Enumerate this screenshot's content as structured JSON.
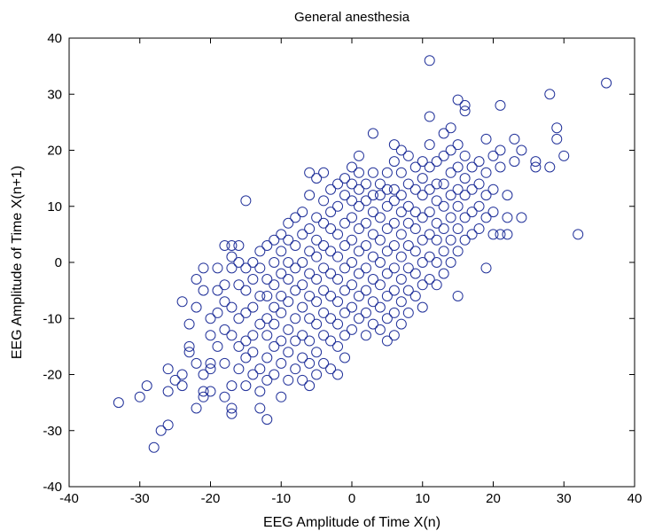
{
  "chart_data": {
    "type": "scatter",
    "title": "General anesthesia",
    "xlabel": "EEG Amplitude of Time X(n)",
    "ylabel": "EEG Amplitude of Time X(n+1)",
    "xlim": [
      -40,
      40
    ],
    "ylim": [
      -40,
      40
    ],
    "xticks": [
      -40,
      -30,
      -20,
      -10,
      0,
      10,
      20,
      30,
      40
    ],
    "yticks": [
      -40,
      -30,
      -20,
      -10,
      0,
      10,
      20,
      30,
      40
    ],
    "grid": false,
    "legend": "none",
    "marker": "circle-open",
    "marker_color": "#22329a",
    "points": [
      [
        -33,
        -25
      ],
      [
        -30,
        -24
      ],
      [
        -29,
        -22
      ],
      [
        -28,
        -33
      ],
      [
        -27,
        -30
      ],
      [
        -26,
        -29
      ],
      [
        -26,
        -23
      ],
      [
        -26,
        -19
      ],
      [
        -25,
        -21
      ],
      [
        -24,
        -20
      ],
      [
        -24,
        -22
      ],
      [
        -24,
        -7
      ],
      [
        -23,
        -11
      ],
      [
        -23,
        -16
      ],
      [
        -23,
        -15
      ],
      [
        -22,
        -26
      ],
      [
        -22,
        -18
      ],
      [
        -22,
        -8
      ],
      [
        -22,
        -3
      ],
      [
        -21,
        -24
      ],
      [
        -21,
        -20
      ],
      [
        -21,
        -23
      ],
      [
        -21,
        -5
      ],
      [
        -21,
        -1
      ],
      [
        -20,
        -23
      ],
      [
        -20,
        -18
      ],
      [
        -20,
        -13
      ],
      [
        -20,
        -10
      ],
      [
        -20,
        -19
      ],
      [
        -19,
        -15
      ],
      [
        -19,
        -9
      ],
      [
        -19,
        -5
      ],
      [
        -19,
        -1
      ],
      [
        -18,
        -24
      ],
      [
        -18,
        -12
      ],
      [
        -18,
        -18
      ],
      [
        -18,
        -4
      ],
      [
        -18,
        -7
      ],
      [
        -18,
        3
      ],
      [
        -17,
        -27
      ],
      [
        -17,
        -26
      ],
      [
        -17,
        -22
      ],
      [
        -17,
        -13
      ],
      [
        -17,
        -8
      ],
      [
        -17,
        -1
      ],
      [
        -17,
        1
      ],
      [
        -17,
        3
      ],
      [
        -16,
        -19
      ],
      [
        -16,
        -10
      ],
      [
        -16,
        -15
      ],
      [
        -16,
        -4
      ],
      [
        -16,
        0
      ],
      [
        -16,
        3
      ],
      [
        -15,
        -22
      ],
      [
        -15,
        -17
      ],
      [
        -15,
        -14
      ],
      [
        -15,
        -9
      ],
      [
        -15,
        -5
      ],
      [
        -15,
        -1
      ],
      [
        -15,
        11
      ],
      [
        -14,
        -20
      ],
      [
        -14,
        -16
      ],
      [
        -14,
        -13
      ],
      [
        -14,
        -8
      ],
      [
        -14,
        -3
      ],
      [
        -14,
        0
      ],
      [
        -13,
        -23
      ],
      [
        -13,
        -26
      ],
      [
        -13,
        -19
      ],
      [
        -13,
        -11
      ],
      [
        -13,
        -6
      ],
      [
        -13,
        -1
      ],
      [
        -13,
        2
      ],
      [
        -12,
        -28
      ],
      [
        -12,
        -21
      ],
      [
        -12,
        -17
      ],
      [
        -12,
        -13
      ],
      [
        -12,
        -10
      ],
      [
        -12,
        -6
      ],
      [
        -12,
        -3
      ],
      [
        -12,
        3
      ],
      [
        -11,
        -20
      ],
      [
        -11,
        -15
      ],
      [
        -11,
        -11
      ],
      [
        -11,
        -8
      ],
      [
        -11,
        -4
      ],
      [
        -11,
        0
      ],
      [
        -11,
        4
      ],
      [
        -10,
        -24
      ],
      [
        -10,
        -18
      ],
      [
        -10,
        -14
      ],
      [
        -10,
        -9
      ],
      [
        -10,
        -6
      ],
      [
        -10,
        -2
      ],
      [
        -10,
        2
      ],
      [
        -10,
        5
      ],
      [
        -9,
        -21
      ],
      [
        -9,
        -16
      ],
      [
        -9,
        -12
      ],
      [
        -9,
        -7
      ],
      [
        -9,
        -3
      ],
      [
        -9,
        0
      ],
      [
        -9,
        4
      ],
      [
        -9,
        7
      ],
      [
        -8,
        -19
      ],
      [
        -8,
        -14
      ],
      [
        -8,
        -10
      ],
      [
        -8,
        -5
      ],
      [
        -8,
        -1
      ],
      [
        -8,
        3
      ],
      [
        -8,
        8
      ],
      [
        -7,
        -21
      ],
      [
        -7,
        -17
      ],
      [
        -7,
        -13
      ],
      [
        -7,
        -8
      ],
      [
        -7,
        -4
      ],
      [
        -7,
        0
      ],
      [
        -7,
        5
      ],
      [
        -7,
        9
      ],
      [
        -6,
        -22
      ],
      [
        -6,
        -18
      ],
      [
        -6,
        -14
      ],
      [
        -6,
        -10
      ],
      [
        -6,
        -6
      ],
      [
        -6,
        -2
      ],
      [
        -6,
        2
      ],
      [
        -6,
        6
      ],
      [
        -6,
        12
      ],
      [
        -6,
        16
      ],
      [
        -5,
        -20
      ],
      [
        -5,
        -16
      ],
      [
        -5,
        -11
      ],
      [
        -5,
        -7
      ],
      [
        -5,
        -3
      ],
      [
        -5,
        1
      ],
      [
        -5,
        4
      ],
      [
        -5,
        8
      ],
      [
        -5,
        15
      ],
      [
        -4,
        -18
      ],
      [
        -4,
        -13
      ],
      [
        -4,
        -9
      ],
      [
        -4,
        -5
      ],
      [
        -4,
        -1
      ],
      [
        -4,
        3
      ],
      [
        -4,
        7
      ],
      [
        -4,
        11
      ],
      [
        -4,
        16
      ],
      [
        -3,
        -19
      ],
      [
        -3,
        -14
      ],
      [
        -3,
        -10
      ],
      [
        -3,
        -6
      ],
      [
        -3,
        -2
      ],
      [
        -3,
        2
      ],
      [
        -3,
        6
      ],
      [
        -3,
        9
      ],
      [
        -3,
        13
      ],
      [
        -2,
        -20
      ],
      [
        -2,
        -15
      ],
      [
        -2,
        -11
      ],
      [
        -2,
        -7
      ],
      [
        -2,
        -3
      ],
      [
        -2,
        1
      ],
      [
        -2,
        5
      ],
      [
        -2,
        10
      ],
      [
        -2,
        14
      ],
      [
        -1,
        -17
      ],
      [
        -1,
        -13
      ],
      [
        -1,
        -9
      ],
      [
        -1,
        -5
      ],
      [
        -1,
        -1
      ],
      [
        -1,
        3
      ],
      [
        -1,
        7
      ],
      [
        -1,
        12
      ],
      [
        -1,
        15
      ],
      [
        0,
        -12
      ],
      [
        0,
        -8
      ],
      [
        0,
        -4
      ],
      [
        0,
        0
      ],
      [
        0,
        4
      ],
      [
        0,
        8
      ],
      [
        0,
        11
      ],
      [
        0,
        14
      ],
      [
        0,
        17
      ],
      [
        1,
        -10
      ],
      [
        1,
        -6
      ],
      [
        1,
        -2
      ],
      [
        1,
        2
      ],
      [
        1,
        6
      ],
      [
        1,
        10
      ],
      [
        1,
        13
      ],
      [
        1,
        16
      ],
      [
        1,
        19
      ],
      [
        2,
        -13
      ],
      [
        2,
        -9
      ],
      [
        2,
        -5
      ],
      [
        2,
        -1
      ],
      [
        2,
        3
      ],
      [
        2,
        7
      ],
      [
        2,
        11
      ],
      [
        2,
        14
      ],
      [
        3,
        -11
      ],
      [
        3,
        -7
      ],
      [
        3,
        -3
      ],
      [
        3,
        1
      ],
      [
        3,
        5
      ],
      [
        3,
        9
      ],
      [
        3,
        12
      ],
      [
        3,
        16
      ],
      [
        3,
        23
      ],
      [
        4,
        -12
      ],
      [
        4,
        -8
      ],
      [
        4,
        -4
      ],
      [
        4,
        0
      ],
      [
        4,
        4
      ],
      [
        4,
        8
      ],
      [
        4,
        12
      ],
      [
        4,
        14
      ],
      [
        5,
        -14
      ],
      [
        5,
        -10
      ],
      [
        5,
        -6
      ],
      [
        5,
        -2
      ],
      [
        5,
        2
      ],
      [
        5,
        6
      ],
      [
        5,
        10
      ],
      [
        5,
        13
      ],
      [
        5,
        16
      ],
      [
        6,
        -13
      ],
      [
        6,
        -9
      ],
      [
        6,
        -5
      ],
      [
        6,
        -1
      ],
      [
        6,
        3
      ],
      [
        6,
        7
      ],
      [
        6,
        11
      ],
      [
        6,
        13
      ],
      [
        6,
        18
      ],
      [
        6,
        21
      ],
      [
        7,
        -11
      ],
      [
        7,
        -7
      ],
      [
        7,
        -3
      ],
      [
        7,
        1
      ],
      [
        7,
        5
      ],
      [
        7,
        9
      ],
      [
        7,
        12
      ],
      [
        7,
        16
      ],
      [
        7,
        20
      ],
      [
        8,
        -9
      ],
      [
        8,
        -5
      ],
      [
        8,
        -1
      ],
      [
        8,
        3
      ],
      [
        8,
        7
      ],
      [
        8,
        10
      ],
      [
        8,
        14
      ],
      [
        8,
        19
      ],
      [
        9,
        -6
      ],
      [
        9,
        -2
      ],
      [
        9,
        2
      ],
      [
        9,
        6
      ],
      [
        9,
        9
      ],
      [
        9,
        13
      ],
      [
        9,
        17
      ],
      [
        10,
        -8
      ],
      [
        10,
        -4
      ],
      [
        10,
        0
      ],
      [
        10,
        4
      ],
      [
        10,
        8
      ],
      [
        10,
        12
      ],
      [
        10,
        15
      ],
      [
        10,
        18
      ],
      [
        11,
        -3
      ],
      [
        11,
        1
      ],
      [
        11,
        5
      ],
      [
        11,
        9
      ],
      [
        11,
        13
      ],
      [
        11,
        17
      ],
      [
        11,
        21
      ],
      [
        11,
        26
      ],
      [
        11,
        36
      ],
      [
        12,
        -4
      ],
      [
        12,
        0
      ],
      [
        12,
        4
      ],
      [
        12,
        7
      ],
      [
        12,
        11
      ],
      [
        12,
        14
      ],
      [
        12,
        18
      ],
      [
        13,
        -2
      ],
      [
        13,
        2
      ],
      [
        13,
        6
      ],
      [
        13,
        10
      ],
      [
        13,
        14
      ],
      [
        13,
        19
      ],
      [
        13,
        23
      ],
      [
        14,
        0
      ],
      [
        14,
        4
      ],
      [
        14,
        8
      ],
      [
        14,
        12
      ],
      [
        14,
        16
      ],
      [
        14,
        20
      ],
      [
        14,
        24
      ],
      [
        15,
        -6
      ],
      [
        15,
        2
      ],
      [
        15,
        6
      ],
      [
        15,
        10
      ],
      [
        15,
        13
      ],
      [
        15,
        17
      ],
      [
        15,
        21
      ],
      [
        15,
        29
      ],
      [
        16,
        4
      ],
      [
        16,
        8
      ],
      [
        16,
        12
      ],
      [
        16,
        15
      ],
      [
        16,
        19
      ],
      [
        16,
        27
      ],
      [
        16,
        28
      ],
      [
        17,
        5
      ],
      [
        17,
        9
      ],
      [
        17,
        13
      ],
      [
        17,
        17
      ],
      [
        18,
        6
      ],
      [
        18,
        10
      ],
      [
        18,
        14
      ],
      [
        18,
        18
      ],
      [
        19,
        -1
      ],
      [
        19,
        8
      ],
      [
        19,
        12
      ],
      [
        19,
        16
      ],
      [
        19,
        22
      ],
      [
        20,
        5
      ],
      [
        20,
        9
      ],
      [
        20,
        13
      ],
      [
        20,
        19
      ],
      [
        21,
        5
      ],
      [
        21,
        17
      ],
      [
        21,
        20
      ],
      [
        21,
        28
      ],
      [
        22,
        5
      ],
      [
        22,
        8
      ],
      [
        22,
        12
      ],
      [
        23,
        18
      ],
      [
        23,
        22
      ],
      [
        24,
        8
      ],
      [
        24,
        20
      ],
      [
        26,
        17
      ],
      [
        26,
        18
      ],
      [
        28,
        17
      ],
      [
        28,
        30
      ],
      [
        29,
        22
      ],
      [
        29,
        24
      ],
      [
        30,
        19
      ],
      [
        32,
        5
      ],
      [
        36,
        32
      ]
    ]
  }
}
